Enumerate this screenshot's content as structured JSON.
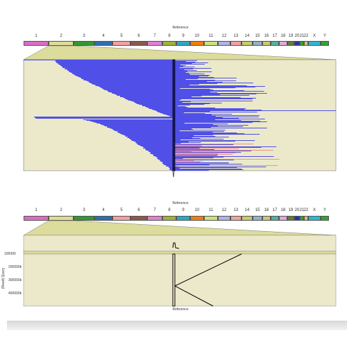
{
  "top_view": {
    "reference_label": "Reference",
    "chromosomes": [
      "1",
      "2",
      "3",
      "4",
      "5",
      "6",
      "7",
      "8",
      "9",
      "10",
      "11",
      "12",
      "13",
      "14",
      "15",
      "16",
      "17",
      "18",
      "19",
      "20",
      "21",
      "22",
      "X",
      "Y"
    ],
    "chromosome_colors": [
      "#d86ec4",
      "#dcdc96",
      "#2f9a2f",
      "#2f6fae",
      "#f3a0a0",
      "#8b5a4a",
      "#e27fce",
      "#9fb23b",
      "#30a6c4",
      "#f07d10",
      "#cde07c",
      "#aeb3e6",
      "#f3a0a0",
      "#c7cb6d",
      "#95b1c8",
      "#c7cb6d",
      "#58b09a",
      "#e0a8d8",
      "#5d7f3b",
      "#2f2fa6",
      "#2aa82a",
      "#c7cb6d",
      "#2fb6d4",
      "#2fa62f"
    ],
    "highlight_color": "#ebe9c9",
    "read_color": "#5050e8",
    "highlight_read_color": "#f09090"
  },
  "bottom_view": {
    "reference_label_top": "Reference",
    "reference_label_bottom": "Reference",
    "y_axis_label": "(Read) Query",
    "y_ticks": [
      "100000",
      "200000k",
      "300000k",
      "400000k"
    ],
    "chromosomes": [
      "1",
      "2",
      "3",
      "4",
      "5",
      "6",
      "7",
      "8",
      "9",
      "10",
      "11",
      "12",
      "13",
      "14",
      "15",
      "16",
      "17",
      "18",
      "19",
      "20",
      "21",
      "22",
      "X",
      "Y"
    ]
  }
}
